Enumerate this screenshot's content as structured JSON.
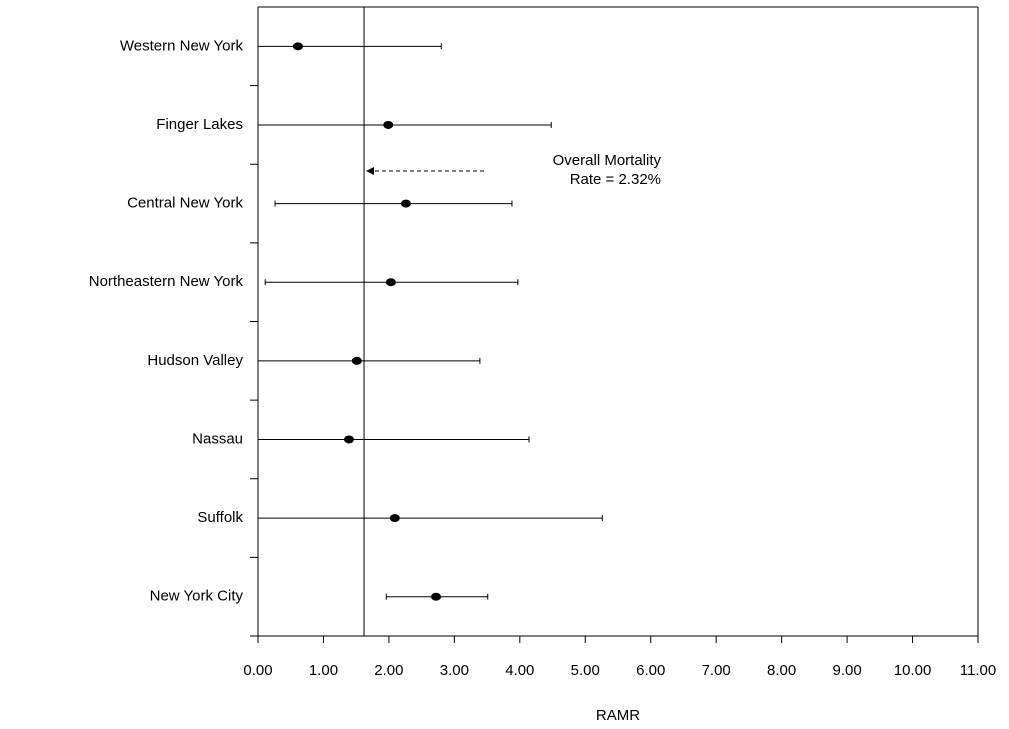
{
  "chart_data": {
    "type": "errorbar",
    "orientation": "horizontal",
    "categories": [
      "Western New York",
      "Finger Lakes",
      "Central New York",
      "Northeastern New York",
      "Hudson Valley",
      "Nassau",
      "Suffolk",
      "New York City"
    ],
    "values": [
      0.61,
      1.99,
      2.26,
      2.03,
      1.51,
      1.39,
      2.09,
      2.72
    ],
    "lower": [
      0.0,
      0.0,
      0.26,
      0.11,
      0.0,
      0.0,
      0.0,
      1.96
    ],
    "upper": [
      2.8,
      4.48,
      3.88,
      3.97,
      3.39,
      4.14,
      5.26,
      3.51
    ],
    "color": "#000000",
    "xlabel": "RAMR",
    "xlim": [
      0,
      11
    ],
    "xticks": [
      {
        "value": 0,
        "label": "0.00"
      },
      {
        "value": 1,
        "label": "1.00"
      },
      {
        "value": 2,
        "label": "2.00"
      },
      {
        "value": 3,
        "label": "3.00"
      },
      {
        "value": 4,
        "label": "4.00"
      },
      {
        "value": 5,
        "label": "5.00"
      },
      {
        "value": 6,
        "label": "6.00"
      },
      {
        "value": 7,
        "label": "7.00"
      },
      {
        "value": 8,
        "label": "8.00"
      },
      {
        "value": 9,
        "label": "9.00"
      },
      {
        "value": 10,
        "label": "10.00"
      },
      {
        "value": 11,
        "label": "11.00"
      }
    ],
    "reference_line": 1.62,
    "annotation": [
      "Overall Mortality",
      "Rate = 2.32%"
    ]
  }
}
